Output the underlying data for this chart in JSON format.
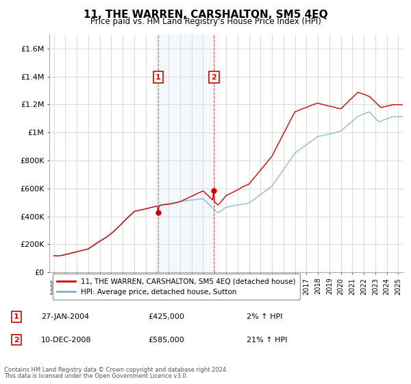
{
  "title": "11, THE WARREN, CARSHALTON, SM5 4EQ",
  "subtitle": "Price paid vs. HM Land Registry's House Price Index (HPI)",
  "ylabel_ticks": [
    "£0",
    "£200K",
    "£400K",
    "£600K",
    "£800K",
    "£1M",
    "£1.2M",
    "£1.4M",
    "£1.6M"
  ],
  "ytick_values": [
    0,
    200000,
    400000,
    600000,
    800000,
    1000000,
    1200000,
    1400000,
    1600000
  ],
  "ylim": [
    0,
    1700000
  ],
  "xlim_start": 1994.6,
  "xlim_end": 2025.4,
  "sale1": {
    "year": 2004.08,
    "price": 425000,
    "label": "1",
    "date": "27-JAN-2004",
    "pct": "2%"
  },
  "sale2": {
    "year": 2008.95,
    "price": 585000,
    "label": "2",
    "date": "10-DEC-2008",
    "pct": "21%"
  },
  "legend_line1_label": "11, THE WARREN, CARSHALTON, SM5 4EQ (detached house)",
  "legend_line2_label": "HPI: Average price, detached house, Sutton",
  "line1_color": "#cc0000",
  "line2_color": "#7ab0d4",
  "shade_color": "#ddeeff",
  "footer1": "Contains HM Land Registry data © Crown copyright and database right 2024.",
  "footer2": "This data is licensed under the Open Government Licence v3.0.",
  "background_color": "#ffffff",
  "grid_color": "#cccccc"
}
